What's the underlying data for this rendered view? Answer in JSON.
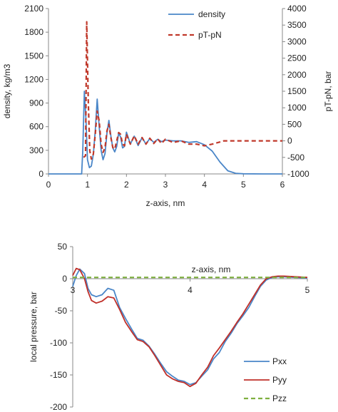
{
  "chart_data": [
    {
      "type": "line",
      "xlabel": "z-axis, nm",
      "ylabel": "density, kg/m3",
      "y2label": "pT-pN, bar",
      "xlim": [
        0,
        6
      ],
      "ylim": [
        0,
        2100
      ],
      "y2lim": [
        -1000,
        4000
      ],
      "xticks": [
        "0",
        "1",
        "2",
        "3",
        "4",
        "5",
        "6"
      ],
      "yticks": [
        "0",
        "300",
        "600",
        "900",
        "1200",
        "1500",
        "1800",
        "2100"
      ],
      "y2ticks": [
        "-1000",
        "-500",
        "0",
        "500",
        "1000",
        "1500",
        "2000",
        "2500",
        "3000",
        "3500",
        "4000"
      ],
      "grid": false,
      "legend_position": "top-right",
      "series": [
        {
          "name": "density",
          "axis": "left",
          "color": "#4a86c8",
          "style": "solid",
          "x": [
            0.0,
            0.85,
            0.88,
            0.92,
            0.96,
            1.0,
            1.05,
            1.1,
            1.15,
            1.2,
            1.25,
            1.3,
            1.35,
            1.4,
            1.45,
            1.5,
            1.55,
            1.6,
            1.65,
            1.7,
            1.75,
            1.8,
            1.85,
            1.9,
            1.95,
            2.0,
            2.1,
            2.2,
            2.3,
            2.4,
            2.5,
            2.6,
            2.7,
            2.8,
            2.9,
            3.0,
            3.2,
            3.4,
            3.6,
            3.8,
            4.0,
            4.2,
            4.4,
            4.6,
            4.8,
            5.0,
            5.5,
            6.0
          ],
          "values": [
            0,
            0,
            300,
            1050,
            700,
            180,
            80,
            100,
            250,
            550,
            950,
            600,
            300,
            180,
            260,
            520,
            680,
            480,
            330,
            280,
            350,
            520,
            470,
            330,
            350,
            530,
            380,
            480,
            360,
            460,
            380,
            450,
            400,
            440,
            410,
            430,
            420,
            420,
            400,
            410,
            370,
            290,
            150,
            40,
            8,
            2,
            0,
            0
          ]
        },
        {
          "name": "pT-pN",
          "axis": "right",
          "color": "#c0392b",
          "style": "dashed",
          "x": [
            0.9,
            0.95,
            0.98,
            1.02,
            1.06,
            1.1,
            1.15,
            1.2,
            1.25,
            1.3,
            1.35,
            1.4,
            1.45,
            1.5,
            1.55,
            1.6,
            1.65,
            1.7,
            1.75,
            1.8,
            1.85,
            1.9,
            1.95,
            2.0,
            2.1,
            2.2,
            2.3,
            2.4,
            2.5,
            2.6,
            2.7,
            2.8,
            2.9,
            3.0,
            3.2,
            3.4,
            3.6,
            3.8,
            4.0,
            4.2,
            4.5,
            5.0,
            5.5,
            6.0
          ],
          "values": [
            -500,
            -450,
            3600,
            1200,
            -300,
            -550,
            -400,
            200,
            900,
            600,
            -100,
            -350,
            -200,
            300,
            500,
            100,
            -200,
            -250,
            0,
            250,
            200,
            -100,
            -150,
            200,
            -100,
            150,
            -100,
            100,
            -100,
            80,
            -80,
            60,
            -80,
            50,
            -50,
            0,
            -100,
            -100,
            -150,
            -100,
            0,
            0,
            0,
            0
          ]
        }
      ]
    },
    {
      "type": "line",
      "xlabel": "z-axis, nm",
      "ylabel": "local pressure, bar",
      "xlim": [
        3,
        5
      ],
      "ylim": [
        -200,
        50
      ],
      "xticks": [
        "3",
        "4",
        "5"
      ],
      "yticks": [
        "50",
        "0",
        "-50",
        "-100",
        "-150",
        "-200"
      ],
      "grid": false,
      "legend_position": "bottom-right",
      "series": [
        {
          "name": "Pxx",
          "color": "#4a86c8",
          "style": "solid",
          "x": [
            3.0,
            3.03,
            3.06,
            3.1,
            3.13,
            3.16,
            3.2,
            3.25,
            3.3,
            3.35,
            3.4,
            3.45,
            3.5,
            3.55,
            3.6,
            3.65,
            3.7,
            3.75,
            3.8,
            3.85,
            3.9,
            3.95,
            4.0,
            4.05,
            4.1,
            4.15,
            4.2,
            4.25,
            4.3,
            4.35,
            4.4,
            4.45,
            4.5,
            4.55,
            4.6,
            4.65,
            4.7,
            4.75,
            4.8,
            4.9,
            5.0
          ],
          "values": [
            -12,
            5,
            15,
            8,
            -15,
            -25,
            -28,
            -25,
            -15,
            -18,
            -45,
            -62,
            -78,
            -93,
            -96,
            -105,
            -118,
            -132,
            -145,
            -152,
            -158,
            -160,
            -165,
            -162,
            -152,
            -142,
            -125,
            -115,
            -98,
            -85,
            -70,
            -58,
            -45,
            -28,
            -12,
            -2,
            2,
            3,
            3,
            2,
            1
          ]
        },
        {
          "name": "Pyy",
          "color": "#c0302a",
          "style": "solid",
          "x": [
            3.0,
            3.03,
            3.06,
            3.1,
            3.13,
            3.16,
            3.2,
            3.25,
            3.3,
            3.35,
            3.4,
            3.45,
            3.5,
            3.55,
            3.6,
            3.65,
            3.7,
            3.75,
            3.8,
            3.85,
            3.9,
            3.95,
            4.0,
            4.05,
            4.1,
            4.15,
            4.2,
            4.25,
            4.3,
            4.35,
            4.4,
            4.45,
            4.5,
            4.55,
            4.6,
            4.65,
            4.7,
            4.75,
            4.8,
            4.9,
            5.0
          ],
          "values": [
            5,
            16,
            14,
            0,
            -20,
            -34,
            -38,
            -35,
            -28,
            -30,
            -48,
            -68,
            -82,
            -95,
            -98,
            -106,
            -120,
            -135,
            -150,
            -156,
            -160,
            -162,
            -168,
            -163,
            -150,
            -138,
            -120,
            -108,
            -95,
            -82,
            -68,
            -55,
            -40,
            -25,
            -10,
            0,
            3,
            4,
            4,
            3,
            2
          ]
        },
        {
          "name": "Pzz",
          "color": "#7fb040",
          "style": "dashed",
          "x": [
            3.0,
            3.5,
            4.0,
            4.5,
            5.0
          ],
          "values": [
            2,
            2,
            2,
            2,
            2
          ]
        }
      ]
    }
  ]
}
